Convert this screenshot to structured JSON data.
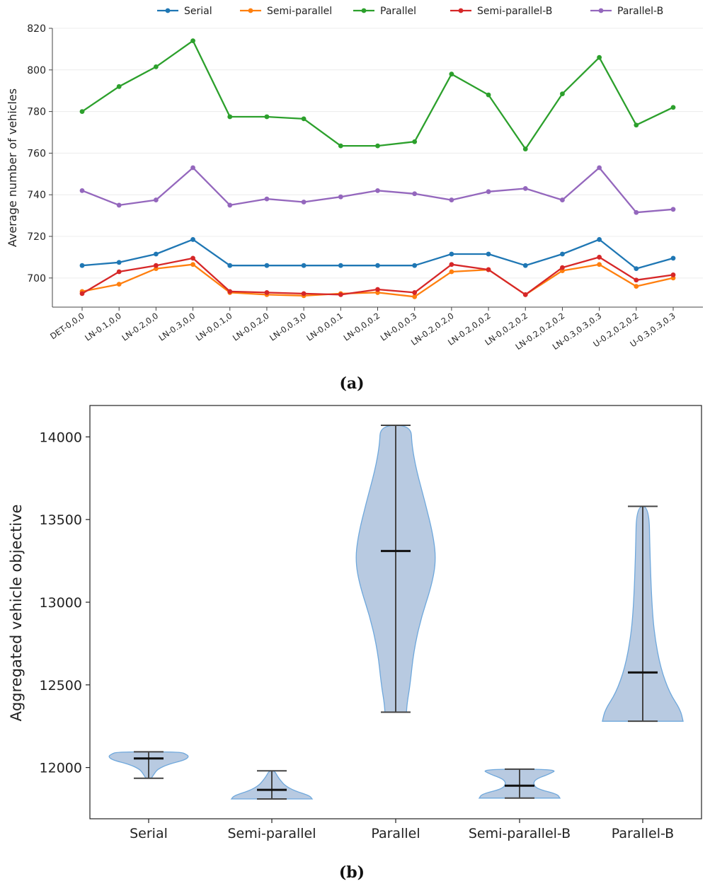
{
  "chart_data": [
    {
      "type": "line",
      "caption": "(a)",
      "title": "",
      "xlabel": "",
      "ylabel": "Average number of vehicles",
      "legend_position": "top",
      "grid": true,
      "ylim": [
        686,
        820
      ],
      "yticks": [
        700,
        720,
        740,
        760,
        780,
        800,
        820
      ],
      "categories": [
        "DET-0,0,0",
        "LN-0.1,0,0",
        "LN-0.2,0,0",
        "LN-0.3,0,0",
        "LN-0,0.1,0",
        "LN-0,0.2,0",
        "LN-0,0.3,0",
        "LN-0,0,0.1",
        "LN-0,0,0.2",
        "LN-0,0,0.3",
        "LN-0.2,0.2,0",
        "LN-0.2,0,0.2",
        "LN-0,0.2,0.2",
        "LN-0.2,0.2,0.2",
        "LN-0.3,0.3,0.3",
        "U-0.2,0.2,0.2",
        "U-0.3,0.3,0.3"
      ],
      "series": [
        {
          "name": "Serial",
          "color": "#1f77b4",
          "values": [
            706,
            707.5,
            711.5,
            718.5,
            706,
            706,
            706,
            706,
            706,
            706,
            711.5,
            711.5,
            706,
            711.5,
            718.5,
            704.5,
            709.5
          ]
        },
        {
          "name": "Semi-parallel",
          "color": "#ff7f0e",
          "values": [
            693.5,
            697,
            704.5,
            706.5,
            693,
            692,
            691.5,
            692.5,
            693,
            691,
            703,
            704,
            692,
            703.5,
            706.5,
            696,
            700
          ]
        },
        {
          "name": "Parallel",
          "color": "#2ca02c",
          "values": [
            780,
            792,
            801.5,
            814,
            777.5,
            777.5,
            776.5,
            763.5,
            763.5,
            765.5,
            798,
            788,
            762,
            788.5,
            806,
            773.5,
            782
          ]
        },
        {
          "name": "Semi-parallel-B",
          "color": "#d62728",
          "values": [
            692.5,
            703,
            706,
            709.5,
            693.5,
            693,
            692.5,
            692,
            694.5,
            693,
            706.5,
            704,
            692,
            705,
            710,
            699,
            701.5
          ]
        },
        {
          "name": "Parallel-B",
          "color": "#9467bd",
          "values": [
            742,
            735,
            737.5,
            753,
            735,
            738,
            736.5,
            739,
            742,
            740.5,
            737.5,
            741.5,
            743,
            737.5,
            753,
            731.5,
            733
          ]
        }
      ]
    },
    {
      "type": "violin",
      "caption": "(b)",
      "title": "",
      "xlabel": "",
      "ylabel": "Aggregated vehicle objective",
      "ylim": [
        11690,
        14190
      ],
      "yticks": [
        12000,
        12500,
        13000,
        13500,
        14000
      ],
      "fill_color": "#b0c4de",
      "edge_color": "#6fa8dc",
      "categories": [
        "Serial",
        "Semi-parallel",
        "Parallel",
        "Semi-parallel-B",
        "Parallel-B"
      ],
      "violins": [
        {
          "name": "Serial",
          "min": 11935,
          "max": 12095,
          "median": 12055,
          "profile": [
            [
              11935,
              0.03
            ],
            [
              11960,
              0.06
            ],
            [
              11990,
              0.1
            ],
            [
              12020,
              0.22
            ],
            [
              12045,
              0.4
            ],
            [
              12065,
              0.45
            ],
            [
              12080,
              0.42
            ],
            [
              12095,
              0.35
            ]
          ]
        },
        {
          "name": "Semi-parallel",
          "min": 11810,
          "max": 11980,
          "median": 11865,
          "profile": [
            [
              11810,
              0.45
            ],
            [
              11830,
              0.42
            ],
            [
              11860,
              0.25
            ],
            [
              11890,
              0.15
            ],
            [
              11920,
              0.1
            ],
            [
              11950,
              0.06
            ],
            [
              11980,
              0.03
            ]
          ]
        },
        {
          "name": "Parallel",
          "min": 12335,
          "max": 14070,
          "median": 13310,
          "profile": [
            [
              12335,
              0.12
            ],
            [
              12400,
              0.13
            ],
            [
              12500,
              0.16
            ],
            [
              12700,
              0.2
            ],
            [
              12900,
              0.28
            ],
            [
              13100,
              0.4
            ],
            [
              13250,
              0.45
            ],
            [
              13400,
              0.42
            ],
            [
              13600,
              0.33
            ],
            [
              13800,
              0.23
            ],
            [
              13950,
              0.18
            ],
            [
              14070,
              0.17
            ]
          ]
        },
        {
          "name": "Semi-parallel-B",
          "min": 11815,
          "max": 11990,
          "median": 11890,
          "profile": [
            [
              11815,
              0.45
            ],
            [
              11840,
              0.42
            ],
            [
              11870,
              0.2
            ],
            [
              11900,
              0.15
            ],
            [
              11930,
              0.18
            ],
            [
              11960,
              0.33
            ],
            [
              11990,
              0.43
            ]
          ]
        },
        {
          "name": "Parallel-B",
          "min": 12280,
          "max": 13580,
          "median": 12575,
          "profile": [
            [
              12280,
              0.45
            ],
            [
              12350,
              0.42
            ],
            [
              12450,
              0.3
            ],
            [
              12600,
              0.2
            ],
            [
              12800,
              0.13
            ],
            [
              13000,
              0.1
            ],
            [
              13300,
              0.08
            ],
            [
              13580,
              0.07
            ]
          ]
        }
      ]
    }
  ]
}
